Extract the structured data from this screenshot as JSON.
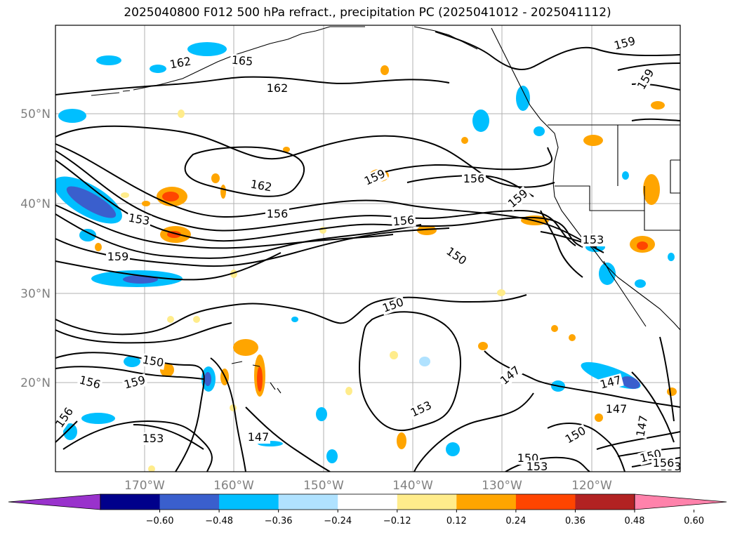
{
  "title": "2025040800 F012 500 hPa refract., precipitation PC (2025041012 - 2025041112)",
  "lat_labels": [
    "50°N",
    "40°N",
    "30°N",
    "20°N"
  ],
  "lon_labels": [
    "170°W",
    "160°W",
    "150°W",
    "140°W",
    "130°W",
    "120°W"
  ],
  "contour_labels": [
    "162",
    "165",
    "162",
    "159",
    "159",
    "162",
    "159",
    "156",
    "156",
    "159",
    "153",
    "156",
    "150",
    "159",
    "153",
    "150",
    "150",
    "156",
    "159",
    "147",
    "153",
    "147",
    "147",
    "147",
    "153",
    "150",
    "150",
    "147",
    "150",
    "153",
    "153",
    "156",
    "156"
  ],
  "colorbar": {
    "ticks": [
      "−0.60",
      "−0.48",
      "−0.36",
      "−0.24",
      "−0.12",
      "0.12",
      "0.24",
      "0.36",
      "0.48",
      "0.60"
    ],
    "colors": [
      "#9932cc",
      "#00008b",
      "#3a5fcd",
      "#00bfff",
      "#b0e2ff",
      "#ffffff",
      "#ffec8b",
      "#ffa500",
      "#ff4500",
      "#b22222",
      "#ff82ab"
    ]
  }
}
